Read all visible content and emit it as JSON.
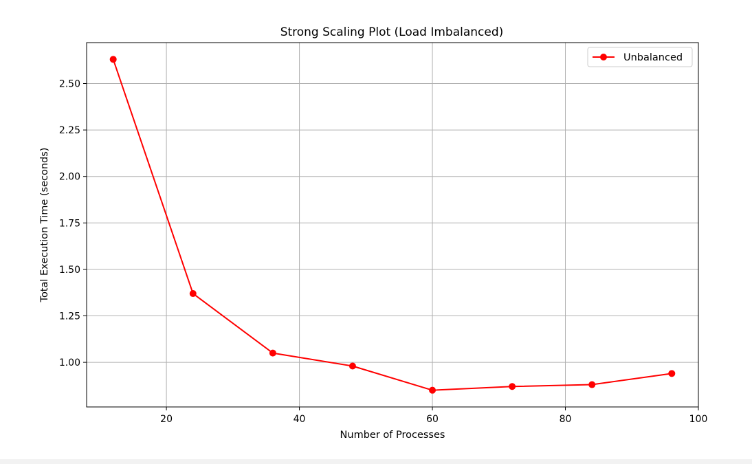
{
  "chart_data": {
    "type": "line",
    "title": "Strong Scaling Plot (Load Imbalanced)",
    "xlabel": "Number of Processes",
    "ylabel": "Total Execution Time (seconds)",
    "xlim": [
      8,
      100
    ],
    "ylim": [
      0.76,
      2.72
    ],
    "xticks": [
      20,
      40,
      60,
      80,
      100
    ],
    "xtick_labels": [
      "20",
      "40",
      "60",
      "80",
      "100"
    ],
    "yticks": [
      1.0,
      1.25,
      1.5,
      1.75,
      2.0,
      2.25,
      2.5
    ],
    "ytick_labels": [
      "1.00",
      "1.25",
      "1.50",
      "1.75",
      "2.00",
      "2.25",
      "2.50"
    ],
    "grid": true,
    "legend_position": "top-right",
    "series": [
      {
        "name": "Unbalanced",
        "color": "#ff0000",
        "marker": "circle",
        "x": [
          12,
          24,
          36,
          48,
          60,
          72,
          84,
          96
        ],
        "y": [
          2.63,
          1.37,
          1.05,
          0.98,
          0.85,
          0.87,
          0.88,
          0.94
        ]
      }
    ]
  }
}
